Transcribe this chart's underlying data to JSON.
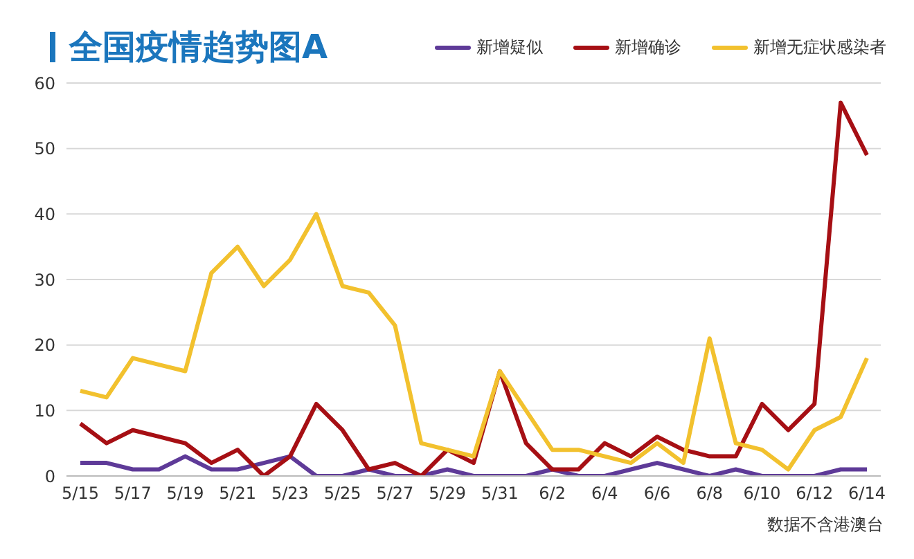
{
  "chart_data": {
    "type": "line",
    "title": "全国疫情趋势图A",
    "categories": [
      "5/15",
      null,
      "5/17",
      null,
      "5/19",
      null,
      "5/21",
      null,
      "5/23",
      null,
      "5/25",
      null,
      "5/27",
      null,
      "5/29",
      null,
      "5/31",
      null,
      "6/2",
      null,
      "6/4",
      null,
      "6/6",
      null,
      "6/8",
      null,
      "6/10",
      null,
      "6/12",
      null,
      "6/14"
    ],
    "series": [
      {
        "name": "新增疑似",
        "color": "#5e3a98",
        "values": [
          2,
          2,
          1,
          1,
          3,
          1,
          1,
          2,
          3,
          0,
          0,
          1,
          0,
          0,
          1,
          0,
          0,
          0,
          1,
          0,
          0,
          1,
          2,
          1,
          0,
          1,
          0,
          0,
          0,
          1,
          1
        ]
      },
      {
        "name": "新增确诊",
        "color": "#a60f14",
        "values": [
          8,
          5,
          7,
          6,
          5,
          2,
          4,
          0,
          3,
          11,
          7,
          1,
          2,
          0,
          4,
          2,
          16,
          5,
          1,
          1,
          5,
          3,
          6,
          4,
          3,
          3,
          11,
          7,
          11,
          57,
          49
        ]
      },
      {
        "name": "新增无症状感染者",
        "color": "#f2c12e",
        "values": [
          13,
          12,
          18,
          17,
          16,
          31,
          35,
          29,
          33,
          40,
          29,
          28,
          23,
          5,
          4,
          3,
          16,
          10,
          4,
          4,
          3,
          2,
          5,
          2,
          21,
          5,
          4,
          1,
          7,
          9,
          18
        ]
      }
    ],
    "ylim": [
      0,
      60
    ],
    "yticks": [
      0,
      10,
      20,
      30,
      40,
      50,
      60
    ],
    "grid": "y",
    "legend": "top right",
    "marker": "none",
    "line_style": "solid",
    "annotations": [
      "数据不含港澳台"
    ]
  }
}
